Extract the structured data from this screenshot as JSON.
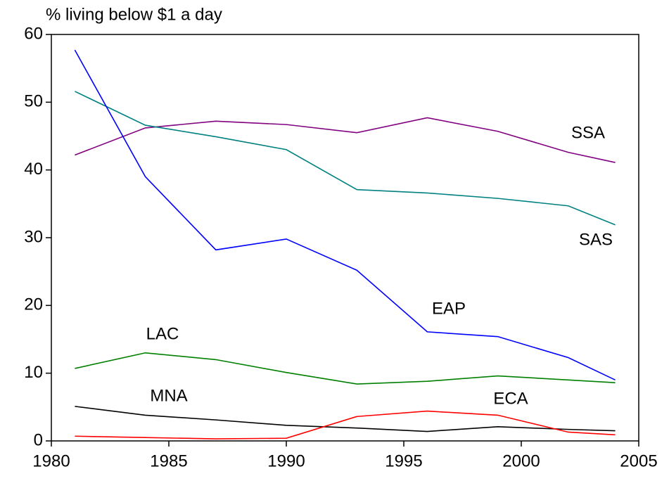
{
  "chart_data": {
    "type": "line",
    "y_axis_label": "% living below $1 a day",
    "x": [
      1981,
      1984,
      1987,
      1990,
      1993,
      1996,
      1999,
      2002,
      2004
    ],
    "series": [
      {
        "name": "SSA",
        "color": "#800080",
        "values": [
          42.2,
          46.2,
          47.2,
          46.7,
          45.5,
          47.7,
          45.7,
          42.6,
          41.1
        ]
      },
      {
        "name": "SAS",
        "color": "#008080",
        "values": [
          51.6,
          46.6,
          44.9,
          43.0,
          37.1,
          36.6,
          35.8,
          34.7,
          31.9
        ]
      },
      {
        "name": "EAP",
        "color": "#0000ff",
        "values": [
          57.7,
          39.0,
          28.2,
          29.8,
          25.2,
          16.1,
          15.4,
          12.3,
          9.0
        ]
      },
      {
        "name": "LAC",
        "color": "#008000",
        "values": [
          10.7,
          13.0,
          12.0,
          10.1,
          8.4,
          8.8,
          9.6,
          9.0,
          8.6
        ]
      },
      {
        "name": "MNA",
        "color": "#000000",
        "values": [
          5.1,
          3.8,
          3.1,
          2.3,
          1.9,
          1.4,
          2.1,
          1.7,
          1.5
        ]
      },
      {
        "name": "ECA",
        "color": "#ff0000",
        "values": [
          0.7,
          0.5,
          0.3,
          0.4,
          3.6,
          4.4,
          3.8,
          1.3,
          0.9
        ]
      }
    ],
    "xlim": [
      1980,
      2005
    ],
    "xticks": [
      1980,
      1985,
      1990,
      1995,
      2000,
      2005
    ],
    "ylim": [
      0,
      60
    ],
    "yticks": [
      0,
      10,
      20,
      30,
      40,
      50,
      60
    ]
  }
}
